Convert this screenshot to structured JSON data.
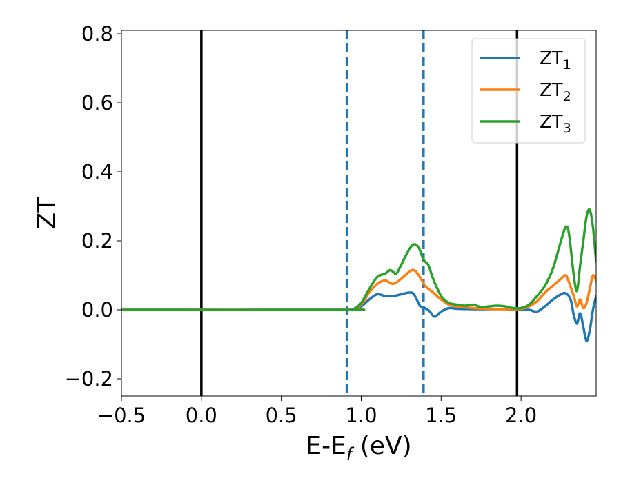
{
  "chart_data": {
    "type": "line",
    "xlabel": {
      "main": "E-E",
      "sub": "f",
      "tail": " (eV)"
    },
    "ylabel": "ZT",
    "xlim": [
      -0.5,
      2.47
    ],
    "ylim": [
      -0.25,
      0.81
    ],
    "x_ticks": [
      -0.5,
      0.0,
      0.5,
      1.0,
      1.5,
      2.0
    ],
    "x_tick_labels": [
      "−0.5",
      "0.0",
      "0.5",
      "1.0",
      "1.5",
      "2.0"
    ],
    "y_ticks": [
      -0.2,
      0.0,
      0.2,
      0.4,
      0.6,
      0.8
    ],
    "y_tick_labels": [
      "−0.2",
      "0.0",
      "0.2",
      "0.4",
      "0.6",
      "0.8"
    ],
    "grid": false,
    "legend_position": "top-right",
    "vlines": [
      {
        "x": 0.0,
        "style": "solid",
        "color": "#000000"
      },
      {
        "x": 1.975,
        "style": "solid",
        "color": "#000000"
      },
      {
        "x": 0.91,
        "style": "dashed",
        "color": "#1f77b4"
      },
      {
        "x": 1.39,
        "style": "dashed",
        "color": "#1f77b4"
      }
    ],
    "series": [
      {
        "name": "ZT",
        "sub": "1",
        "color": "#1f77b4",
        "points": [
          [
            -0.5,
            0
          ],
          [
            0.9,
            0
          ],
          [
            0.95,
            0.002
          ],
          [
            1.0,
            0.01
          ],
          [
            1.05,
            0.03
          ],
          [
            1.1,
            0.045
          ],
          [
            1.15,
            0.04
          ],
          [
            1.2,
            0.04
          ],
          [
            1.25,
            0.045
          ],
          [
            1.3,
            0.05
          ],
          [
            1.33,
            0.045
          ],
          [
            1.37,
            0.01
          ],
          [
            1.4,
            0.005
          ],
          [
            1.43,
            -0.005
          ],
          [
            1.46,
            -0.02
          ],
          [
            1.5,
            -0.005
          ],
          [
            1.55,
            0.005
          ],
          [
            1.6,
            0.003
          ],
          [
            1.7,
            0.002
          ],
          [
            1.8,
            0.002
          ],
          [
            1.9,
            0.002
          ],
          [
            2.0,
            0
          ],
          [
            2.05,
            0
          ],
          [
            2.1,
            -0.005
          ],
          [
            2.15,
            0.01
          ],
          [
            2.2,
            0.03
          ],
          [
            2.25,
            0.045
          ],
          [
            2.28,
            0.048
          ],
          [
            2.31,
            0.03
          ],
          [
            2.33,
            -0.015
          ],
          [
            2.35,
            -0.04
          ],
          [
            2.37,
            -0.01
          ],
          [
            2.39,
            -0.05
          ],
          [
            2.41,
            -0.09
          ],
          [
            2.43,
            -0.06
          ],
          [
            2.45,
            0.0
          ],
          [
            2.47,
            0.04
          ]
        ]
      },
      {
        "name": "ZT",
        "sub": "2",
        "color": "#ff7f0e",
        "points": [
          [
            -0.5,
            0
          ],
          [
            0.9,
            0
          ],
          [
            0.95,
            0.002
          ],
          [
            1.0,
            0.015
          ],
          [
            1.05,
            0.05
          ],
          [
            1.1,
            0.075
          ],
          [
            1.15,
            0.085
          ],
          [
            1.2,
            0.075
          ],
          [
            1.25,
            0.09
          ],
          [
            1.3,
            0.11
          ],
          [
            1.33,
            0.115
          ],
          [
            1.36,
            0.1
          ],
          [
            1.4,
            0.07
          ],
          [
            1.45,
            0.05
          ],
          [
            1.5,
            0.03
          ],
          [
            1.55,
            0.015
          ],
          [
            1.6,
            0.01
          ],
          [
            1.7,
            0.005
          ],
          [
            1.8,
            0.003
          ],
          [
            1.9,
            0.002
          ],
          [
            2.0,
            0.003
          ],
          [
            2.05,
            0.01
          ],
          [
            2.1,
            0.025
          ],
          [
            2.15,
            0.05
          ],
          [
            2.2,
            0.07
          ],
          [
            2.25,
            0.09
          ],
          [
            2.28,
            0.1
          ],
          [
            2.3,
            0.08
          ],
          [
            2.33,
            0.04
          ],
          [
            2.35,
            0.01
          ],
          [
            2.37,
            0.03
          ],
          [
            2.39,
            0.005
          ],
          [
            2.41,
            0.02
          ],
          [
            2.43,
            0.06
          ],
          [
            2.45,
            0.1
          ],
          [
            2.47,
            0.085
          ]
        ]
      },
      {
        "name": "ZT",
        "sub": "3",
        "color": "#2ca02c",
        "points": [
          [
            -0.5,
            0
          ],
          [
            0.9,
            0
          ],
          [
            0.95,
            0.002
          ],
          [
            1.0,
            0.02
          ],
          [
            1.05,
            0.06
          ],
          [
            1.1,
            0.095
          ],
          [
            1.15,
            0.105
          ],
          [
            1.18,
            0.115
          ],
          [
            1.2,
            0.11
          ],
          [
            1.22,
            0.105
          ],
          [
            1.25,
            0.13
          ],
          [
            1.3,
            0.175
          ],
          [
            1.33,
            0.19
          ],
          [
            1.36,
            0.18
          ],
          [
            1.39,
            0.145
          ],
          [
            1.42,
            0.13
          ],
          [
            1.45,
            0.09
          ],
          [
            1.5,
            0.04
          ],
          [
            1.55,
            0.02
          ],
          [
            1.6,
            0.015
          ],
          [
            1.65,
            0.012
          ],
          [
            1.7,
            0.015
          ],
          [
            1.75,
            0.008
          ],
          [
            1.8,
            0.01
          ],
          [
            1.85,
            0.012
          ],
          [
            1.9,
            0.01
          ],
          [
            1.95,
            0.005
          ],
          [
            2.0,
            0.005
          ],
          [
            2.05,
            0.015
          ],
          [
            2.1,
            0.04
          ],
          [
            2.15,
            0.07
          ],
          [
            2.2,
            0.12
          ],
          [
            2.25,
            0.2
          ],
          [
            2.28,
            0.24
          ],
          [
            2.3,
            0.22
          ],
          [
            2.33,
            0.1
          ],
          [
            2.35,
            0.055
          ],
          [
            2.37,
            0.13
          ],
          [
            2.39,
            0.2
          ],
          [
            2.41,
            0.27
          ],
          [
            2.43,
            0.29
          ],
          [
            2.45,
            0.24
          ],
          [
            2.47,
            0.14
          ]
        ]
      }
    ]
  }
}
